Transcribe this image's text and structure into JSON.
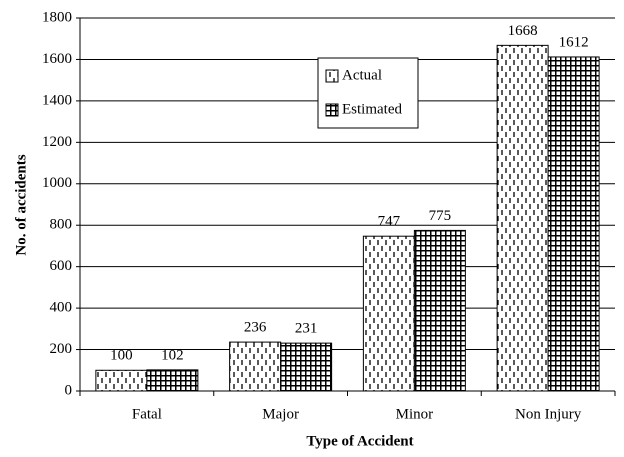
{
  "chart_data": {
    "type": "bar",
    "x_label": "Type of Accident",
    "y_label": "No. of accidents",
    "categories": [
      "Fatal",
      "Major",
      "Minor",
      "Non Injury"
    ],
    "series": [
      {
        "name": "Actual",
        "values": [
          100,
          236,
          747,
          1668
        ]
      },
      {
        "name": "Estimated",
        "values": [
          102,
          231,
          775,
          1612
        ]
      }
    ],
    "ylim": [
      0,
      1800
    ],
    "yticks": [
      0,
      200,
      400,
      600,
      800,
      1000,
      1200,
      1400,
      1600,
      1800
    ],
    "grid": true
  }
}
